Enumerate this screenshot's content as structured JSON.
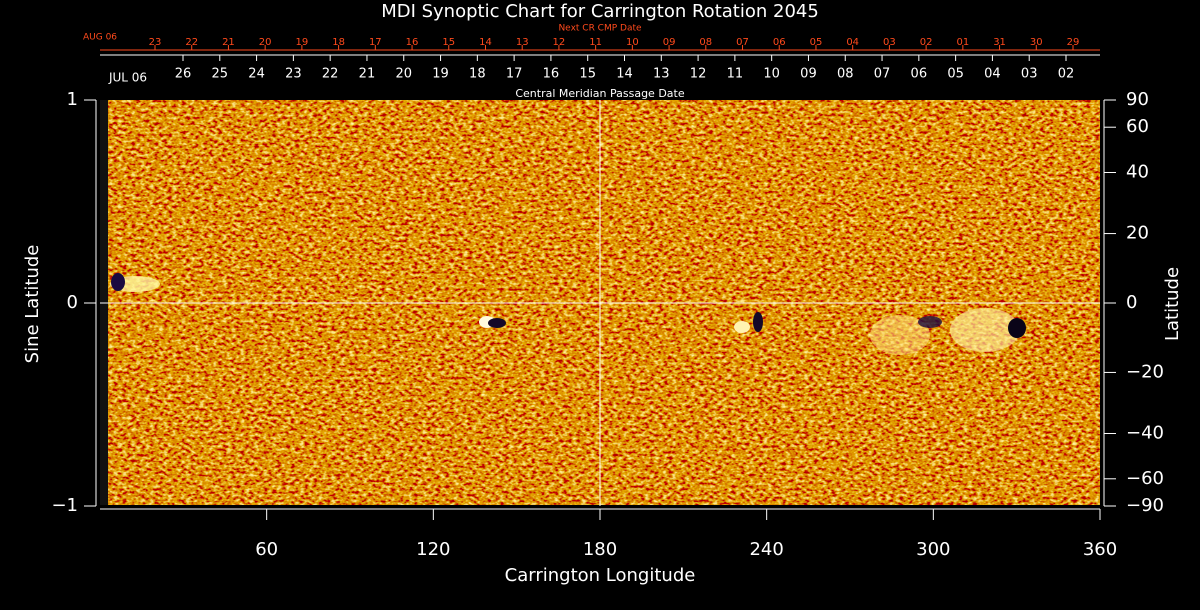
{
  "chart_data": {
    "type": "image",
    "title": "MDI Synoptic Chart for Carrington Rotation 2045",
    "xlabel": "Carrington Longitude",
    "ylabel": "Sine Latitude",
    "y2label": "Latitude",
    "xlim": [
      0,
      360
    ],
    "xticks": [
      60,
      120,
      180,
      240,
      300,
      360
    ],
    "ylim": [
      -1,
      1
    ],
    "yticks": [
      {
        "value": -1,
        "label": "−1"
      },
      0,
      1
    ],
    "y2scale": "sine",
    "y2lim": [
      -90,
      90
    ],
    "y2ticks": [
      90,
      60,
      40,
      20,
      0,
      {
        "value": -20,
        "label": "−20"
      },
      {
        "value": -40,
        "label": "−40"
      },
      {
        "value": -60,
        "label": "−60"
      },
      {
        "value": -90,
        "label": "−90"
      }
    ],
    "cmp_axis": {
      "title": "Central Meridian Passage Date",
      "month": "JUL 06",
      "categories": [
        "26",
        "25",
        "24",
        "23",
        "22",
        "21",
        "20",
        "19",
        "18",
        "17",
        "16",
        "15",
        "14",
        "13",
        "12",
        "11",
        "10",
        "09",
        "08",
        "07",
        "06",
        "05",
        "04",
        "03",
        "02"
      ]
    },
    "next_axis": {
      "title": "Next CR CMP Date",
      "month": "AUG 06",
      "color": "#ff4a1c",
      "categories": [
        "23",
        "22",
        "21",
        "20",
        "19",
        "18",
        "17",
        "16",
        "15",
        "14",
        "13",
        "12",
        "11",
        "10",
        "09",
        "08",
        "07",
        "06",
        "05",
        "04",
        "03",
        "02",
        "01",
        "31",
        "30",
        "29"
      ]
    }
  }
}
